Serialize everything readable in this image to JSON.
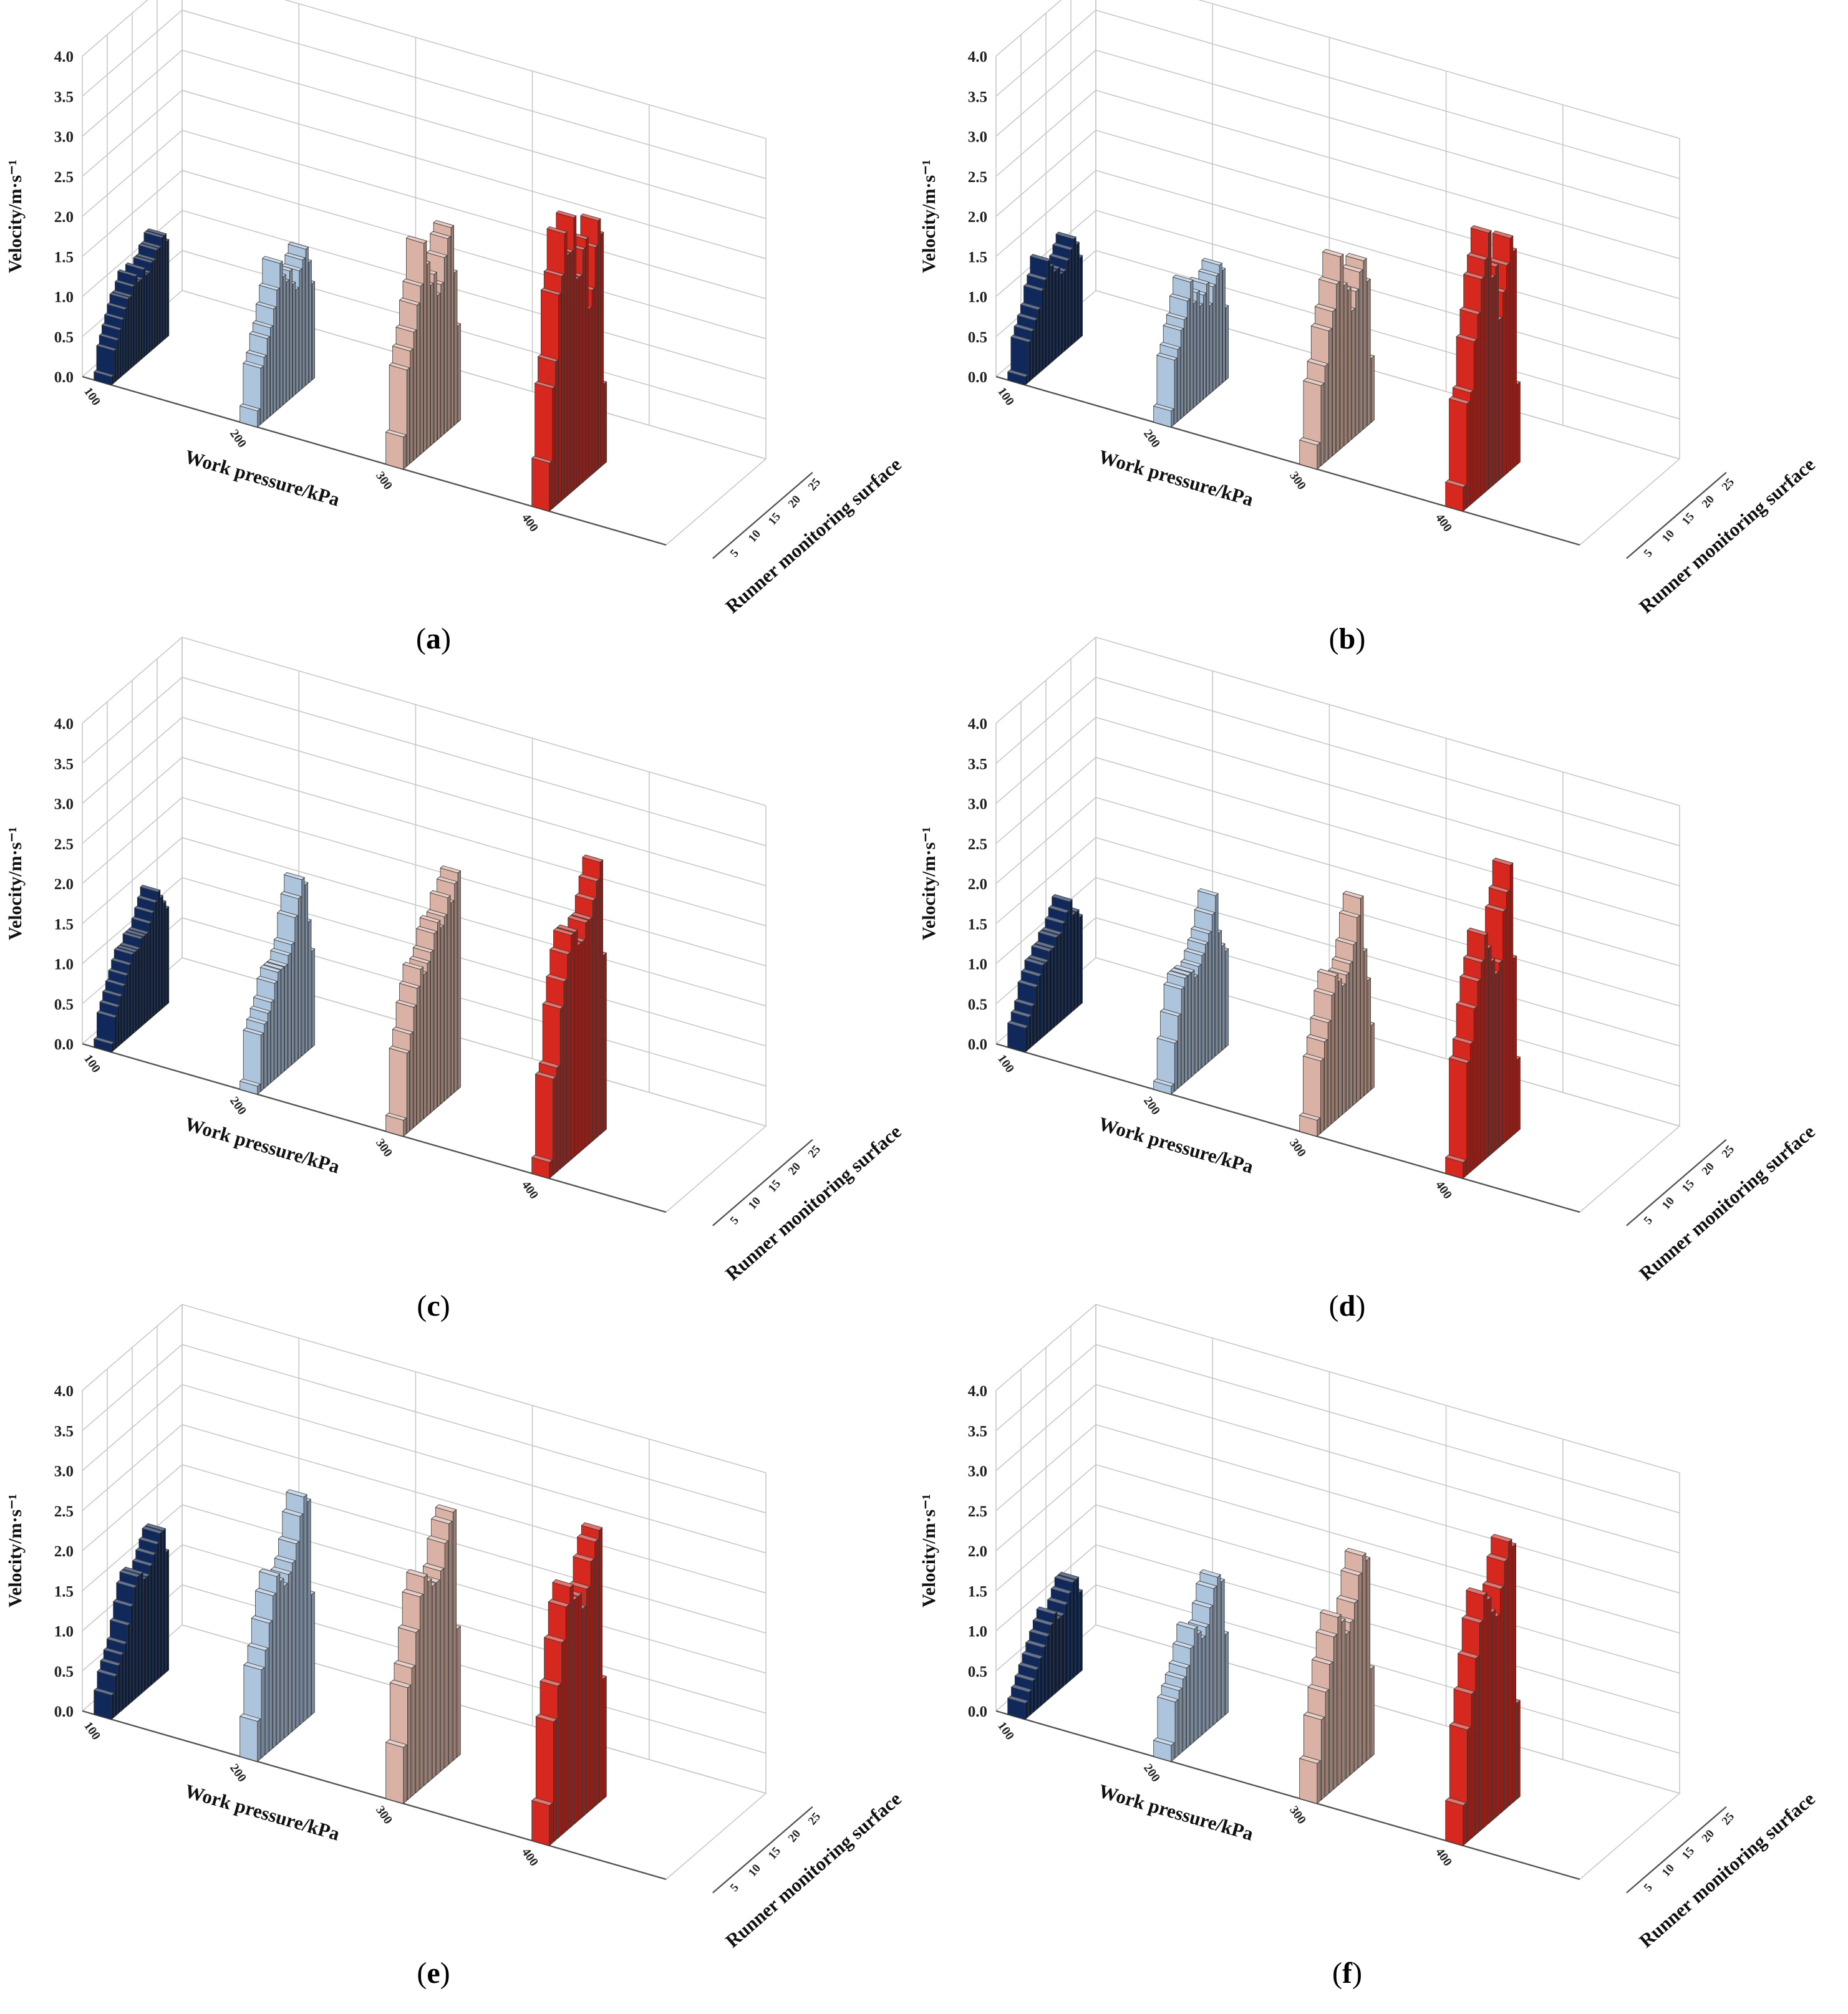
{
  "figure": {
    "colors": {
      "p100": "#10295a",
      "p200": "#adc4dd",
      "p300": "#d9b2a5",
      "p400": "#d6281f",
      "grid": "#c8c8c8",
      "axis": "#555555"
    }
  },
  "chart_data": [
    {
      "type": "bar3d",
      "panel_label": "(a)",
      "ylabel": "Velocity/m·s⁻¹",
      "xlabel": "Work pressure/kPa",
      "zlabel": "Runner monitoring surface",
      "yticks": [
        "0.0",
        "0.5",
        "1.0",
        "1.5",
        "2.0",
        "2.5",
        "3.0",
        "3.5",
        "4.0"
      ],
      "xticks": [
        "100",
        "200",
        "300",
        "400"
      ],
      "zticks": [
        "5",
        "10",
        "15",
        "20",
        "25"
      ],
      "ylim": [
        0,
        4
      ],
      "series": [
        {
          "name": "100",
          "values": [
            0.1,
            0.4,
            0.5,
            0.6,
            0.7,
            0.8,
            0.9,
            0.9,
            1.0,
            1.1,
            1.0,
            1.0,
            1.1,
            1.0,
            1.0,
            1.1,
            1.1,
            1.2,
            1.2,
            1.3,
            1.3,
            1.2
          ]
        },
        {
          "name": "200",
          "values": [
            0.2,
            0.7,
            0.8,
            1.0,
            1.1,
            1.3,
            1.5,
            1.8,
            1.6,
            1.5,
            1.6,
            1.4,
            1.3,
            1.5,
            1.6,
            1.7,
            1.5,
            1.2
          ]
        },
        {
          "name": "300",
          "values": [
            0.4,
            1.2,
            1.4,
            1.6,
            1.9,
            2.1,
            2.6,
            2.3,
            2.0,
            2.1,
            1.8,
            1.9,
            2.2,
            2.4,
            2.5,
            1.9,
            1.2
          ]
        },
        {
          "name": "400",
          "values": [
            0.6,
            1.5,
            1.8,
            2.6,
            2.8,
            3.3,
            3.0,
            3.0,
            3.4,
            2.6,
            2.6,
            2.9,
            3.0,
            2.1,
            2.3,
            2.8,
            3.1,
            2.9,
            1.0
          ]
        }
      ]
    },
    {
      "type": "bar3d",
      "panel_label": "(b)",
      "ylabel": "Velocity/m·s⁻¹",
      "xlabel": "Work pressure/kPa",
      "zlabel": "Runner monitoring surface",
      "yticks": [
        "0.0",
        "0.5",
        "1.0",
        "1.5",
        "2.0",
        "2.5",
        "3.0",
        "3.5",
        "4.0"
      ],
      "xticks": [
        "100",
        "200",
        "300",
        "400"
      ],
      "zticks": [
        "5",
        "10",
        "15",
        "20",
        "25"
      ],
      "ylim": [
        0,
        4
      ],
      "series": [
        {
          "name": "100",
          "values": [
            0.1,
            0.5,
            0.6,
            0.7,
            0.8,
            1.0,
            1.1,
            1.3,
            1.2,
            1.1,
            1.1,
            1.0,
            1.0,
            1.1,
            1.2,
            1.3,
            1.2,
            1.0
          ]
        },
        {
          "name": "200",
          "values": [
            0.2,
            0.8,
            0.9,
            1.1,
            1.2,
            1.4,
            1.6,
            1.3,
            1.4,
            1.2,
            1.3,
            1.4,
            1.1,
            1.3,
            1.4,
            1.5,
            1.4,
            0.9
          ]
        },
        {
          "name": "300",
          "values": [
            0.3,
            1.0,
            1.2,
            1.6,
            1.8,
            2.1,
            2.4,
            2.0,
            1.9,
            1.6,
            1.8,
            2.0,
            2.1,
            1.8,
            0.8
          ]
        },
        {
          "name": "400",
          "values": [
            0.3,
            1.3,
            1.4,
            2.0,
            2.3,
            2.7,
            2.9,
            3.2,
            2.6,
            2.7,
            2.0,
            2.3,
            2.6,
            2.9,
            2.7,
            1.0
          ]
        }
      ]
    },
    {
      "type": "bar3d",
      "panel_label": "(c)",
      "ylabel": "Velocity/m·s⁻¹",
      "xlabel": "Work pressure/kPa",
      "zlabel": "Runner monitoring surface",
      "yticks": [
        "0.0",
        "0.5",
        "1.0",
        "1.5",
        "2.0",
        "2.5",
        "3.0",
        "3.5",
        "4.0"
      ],
      "xticks": [
        "100",
        "200",
        "300",
        "400"
      ],
      "zticks": [
        "5",
        "10",
        "15",
        "20",
        "25"
      ],
      "ylim": [
        0,
        4
      ],
      "series": [
        {
          "name": "100",
          "values": [
            0.1,
            0.4,
            0.5,
            0.6,
            0.7,
            0.8,
            0.9,
            1.0,
            1.0,
            1.0,
            1.1,
            1.1,
            1.1,
            1.2,
            1.3,
            1.4,
            1.5,
            1.4,
            1.3,
            1.2
          ]
        },
        {
          "name": "200",
          "values": [
            0.1,
            0.7,
            0.8,
            0.9,
            1.0,
            1.2,
            1.3,
            1.3,
            1.3,
            1.4,
            1.5,
            1.8,
            2.0,
            2.2,
            2.1,
            1.6,
            1.2
          ]
        },
        {
          "name": "300",
          "values": [
            0.2,
            1.0,
            1.2,
            1.5,
            1.7,
            1.9,
            1.8,
            1.9,
            2.0,
            2.2,
            2.3,
            2.2,
            2.3,
            2.5,
            2.4,
            2.6,
            2.7
          ]
        },
        {
          "name": "400",
          "values": [
            0.2,
            1.2,
            1.3,
            2.0,
            2.3,
            2.6,
            2.8,
            2.8,
            2.6,
            2.6,
            2.8,
            2.8,
            3.0,
            3.2,
            3.4,
            2.2
          ]
        }
      ]
    },
    {
      "type": "bar3d",
      "panel_label": "(d)",
      "ylabel": "Velocity/m·s⁻¹",
      "xlabel": "Work pressure/kPa",
      "zlabel": "Runner monitoring surface",
      "yticks": [
        "0.0",
        "0.5",
        "1.0",
        "1.5",
        "2.0",
        "2.5",
        "3.0",
        "3.5",
        "4.0"
      ],
      "xticks": [
        "100",
        "200",
        "300",
        "400"
      ],
      "zticks": [
        "5",
        "10",
        "15",
        "20",
        "25"
      ],
      "ylim": [
        0,
        4
      ],
      "series": [
        {
          "name": "100",
          "values": [
            0.3,
            0.4,
            0.5,
            0.7,
            0.8,
            0.9,
            0.9,
            1.0,
            1.0,
            1.1,
            1.1,
            1.2,
            1.3,
            1.4,
            1.2,
            1.2,
            1.1
          ]
        },
        {
          "name": "200",
          "values": [
            0.1,
            0.6,
            0.9,
            1.2,
            1.3,
            1.3,
            1.3,
            1.2,
            1.3,
            1.4,
            1.5,
            1.6,
            1.8,
            2.0,
            1.5,
            1.3,
            1.2
          ]
        },
        {
          "name": "300",
          "values": [
            0.2,
            0.9,
            1.1,
            1.3,
            1.6,
            1.8,
            1.7,
            1.6,
            1.7,
            1.8,
            2.0,
            2.3,
            2.5,
            1.8,
            1.4,
            0.8
          ]
        },
        {
          "name": "400",
          "values": [
            0.2,
            1.4,
            1.6,
            2.0,
            2.3,
            2.5,
            2.8,
            2.6,
            2.4,
            2.2,
            2.3,
            2.9,
            3.1,
            3.4,
            2.2,
            0.9
          ]
        }
      ]
    },
    {
      "type": "bar3d",
      "panel_label": "(e)",
      "ylabel": "Velocity/m·s⁻¹",
      "xlabel": "Work pressure/kPa",
      "zlabel": "Runner monitoring surface",
      "yticks": [
        "0.0",
        "0.5",
        "1.0",
        "1.5",
        "2.0",
        "2.5",
        "3.0",
        "3.5",
        "4.0"
      ],
      "xticks": [
        "100",
        "200",
        "300",
        "400"
      ],
      "zticks": [
        "5",
        "10",
        "15",
        "20",
        "25"
      ],
      "ylim": [
        0,
        4
      ],
      "series": [
        {
          "name": "100",
          "values": [
            0.3,
            0.5,
            0.6,
            0.7,
            0.8,
            1.0,
            1.2,
            1.4,
            1.5,
            1.5,
            1.4,
            1.4,
            1.5,
            1.6,
            1.7,
            1.8,
            1.8,
            1.5
          ]
        },
        {
          "name": "200",
          "values": [
            0.5,
            1.1,
            1.3,
            1.6,
            1.9,
            2.1,
            2.0,
            1.9,
            2.0,
            2.1,
            2.3,
            2.6,
            2.8,
            2.7,
            1.5
          ]
        },
        {
          "name": "300",
          "values": [
            0.7,
            1.4,
            1.6,
            2.0,
            2.4,
            2.6,
            2.5,
            2.4,
            2.4,
            2.5,
            2.8,
            3.0,
            3.1,
            1.6
          ]
        },
        {
          "name": "400",
          "values": [
            0.5,
            1.5,
            1.9,
            2.4,
            2.8,
            3.0,
            2.8,
            2.8,
            2.6,
            2.8,
            3.1,
            3.3,
            3.4,
            1.5
          ]
        }
      ]
    },
    {
      "type": "bar3d",
      "panel_label": "(f)",
      "ylabel": "Velocity/m·s⁻¹",
      "xlabel": "Work pressure/kPa",
      "zlabel": "Runner monitoring surface",
      "yticks": [
        "0.0",
        "0.5",
        "1.0",
        "1.5",
        "2.0",
        "2.5",
        "3.0",
        "3.5",
        "4.0"
      ],
      "xticks": [
        "100",
        "200",
        "300",
        "400"
      ],
      "zticks": [
        "5",
        "10",
        "15",
        "20",
        "25"
      ],
      "ylim": [
        0,
        4
      ],
      "series": [
        {
          "name": "100",
          "values": [
            0.2,
            0.3,
            0.4,
            0.5,
            0.6,
            0.7,
            0.8,
            0.9,
            1.0,
            0.9,
            0.9,
            1.0,
            1.1,
            1.2,
            1.2,
            1.0
          ]
        },
        {
          "name": "200",
          "values": [
            0.2,
            0.7,
            0.8,
            0.9,
            1.0,
            1.2,
            1.4,
            1.3,
            1.2,
            1.3,
            1.5,
            1.7,
            1.8,
            1.7,
            1.0
          ]
        },
        {
          "name": "300",
          "values": [
            0.5,
            1.0,
            1.3,
            1.6,
            1.9,
            2.1,
            2.0,
            1.8,
            1.9,
            2.1,
            2.4,
            2.6,
            2.5,
            1.1
          ]
        },
        {
          "name": "400",
          "values": [
            0.5,
            1.4,
            1.8,
            2.2,
            2.6,
            2.9,
            2.8,
            2.6,
            2.5,
            2.8,
            3.1,
            3.3,
            3.2,
            1.2
          ]
        }
      ]
    }
  ]
}
